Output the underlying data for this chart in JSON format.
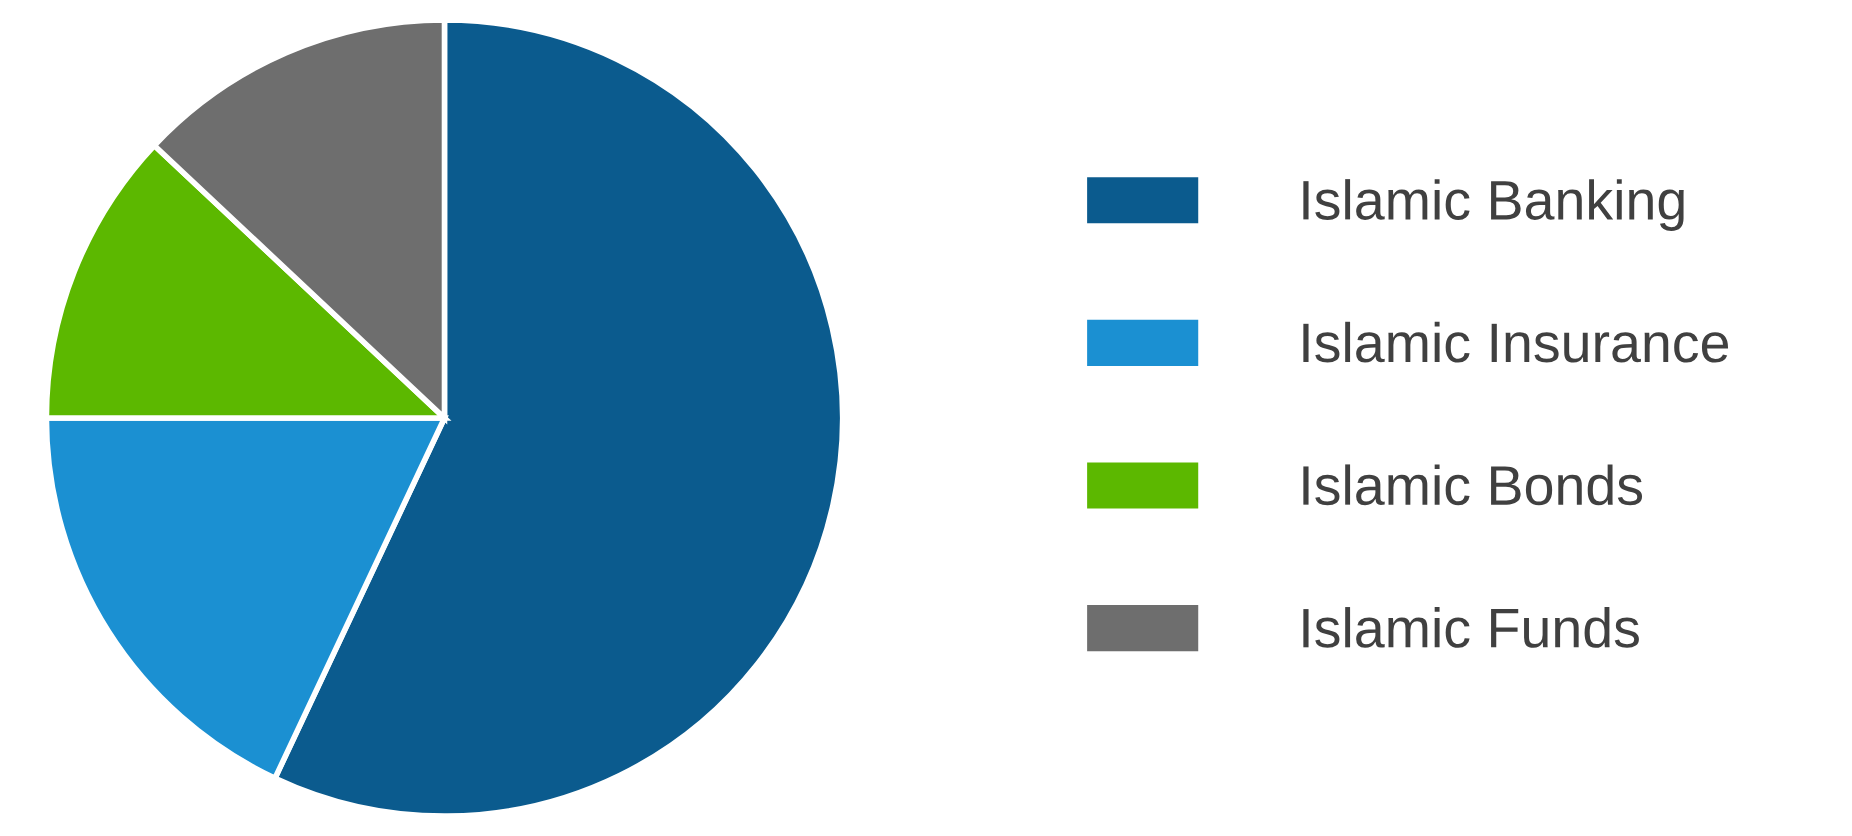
{
  "chart_data": {
    "type": "pie",
    "categories": [
      "Islamic Banking",
      "Islamic Insurance",
      "Islamic Bonds",
      "Islamic Funds"
    ],
    "values": [
      57,
      18,
      12,
      13
    ],
    "colors": [
      "#0b5b8e",
      "#1b90d2",
      "#5cb800",
      "#6e6e6e"
    ],
    "legend": "right"
  }
}
